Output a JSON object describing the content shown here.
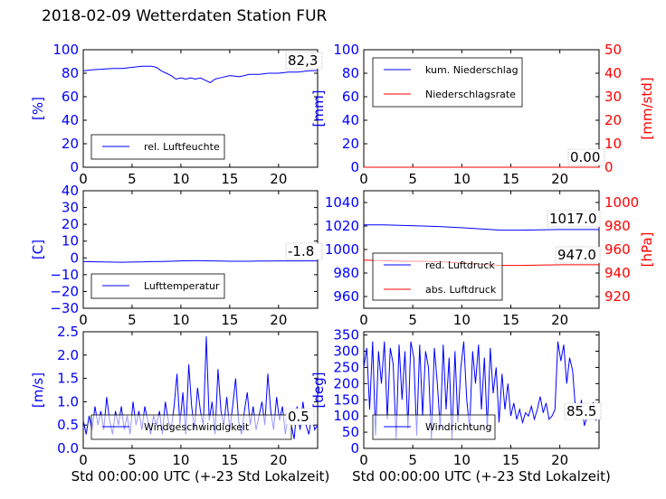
{
  "page_title": "2018-02-09 Wetterdaten Station FUR",
  "colors": {
    "left_axis": "#0000ff",
    "right_axis": "#ff0000",
    "frame": "#000000"
  },
  "chart_data": [
    {
      "type": "line",
      "ylabel": "[%]",
      "xlim": [
        0,
        24
      ],
      "ylim": [
        0,
        100
      ],
      "xticks": [
        0,
        5,
        10,
        15,
        20
      ],
      "yticks": [
        0,
        20,
        40,
        60,
        80,
        100
      ],
      "legend": [
        "rel. Luftfeuchte"
      ],
      "legend_position": "lower-left",
      "last_value_label": "82,3",
      "series": [
        {
          "name": "rel. Luftfeuchte",
          "color": "#0000ff",
          "x": [
            0,
            1,
            2,
            3,
            4,
            5,
            6,
            7,
            7.5,
            8,
            8.5,
            9,
            9.5,
            10,
            10.5,
            11,
            11.5,
            12,
            12.5,
            13,
            13.5,
            14,
            15,
            16,
            17,
            18,
            19,
            20,
            21,
            22,
            23,
            24
          ],
          "y": [
            82,
            83,
            83.5,
            84,
            84,
            85,
            86,
            86,
            85,
            82,
            80,
            78,
            75,
            76,
            75,
            76,
            75,
            76,
            74,
            72,
            75,
            76,
            78,
            77,
            79,
            79,
            80,
            80,
            81,
            81,
            82,
            82.3
          ]
        }
      ]
    },
    {
      "type": "line",
      "ylabel": "[mm]",
      "ylabel_right": "[mm/std]",
      "xlim": [
        0,
        24
      ],
      "ylim": [
        0,
        100
      ],
      "ylim_right": [
        0,
        50
      ],
      "xticks": [
        0,
        5,
        10,
        15,
        20
      ],
      "yticks": [
        0,
        20,
        40,
        60,
        80,
        100
      ],
      "yticks_right": [
        0,
        10,
        20,
        30,
        40,
        50
      ],
      "legend": [
        "kum. Niederschlag",
        "Niederschlagsrate"
      ],
      "legend_position": "upper-left",
      "last_value_label": "0.00",
      "series": [
        {
          "name": "kum. Niederschlag",
          "axis": "left",
          "color": "#0000ff",
          "x": [
            0,
            24
          ],
          "y": [
            0,
            0
          ]
        },
        {
          "name": "Niederschlagsrate",
          "axis": "right",
          "color": "#ff0000",
          "x": [
            0,
            24
          ],
          "y": [
            0,
            0
          ]
        }
      ]
    },
    {
      "type": "line",
      "ylabel": "[C]",
      "xlim": [
        0,
        24
      ],
      "ylim": [
        -30,
        40
      ],
      "xticks": [
        0,
        5,
        10,
        15,
        20
      ],
      "yticks": [
        -30,
        -20,
        -10,
        0,
        10,
        20,
        30,
        40
      ],
      "legend": [
        "Lufttemperatur"
      ],
      "legend_position": "lower-left",
      "last_value_label": "-1.8",
      "series": [
        {
          "name": "Lufttemperatur",
          "color": "#0000ff",
          "x": [
            0,
            2,
            4,
            5,
            6,
            7,
            8,
            9,
            10,
            11,
            12,
            13,
            14,
            15,
            16,
            17,
            18,
            19,
            20,
            21,
            22,
            23,
            24
          ],
          "y": [
            -2.2,
            -2.4,
            -2.6,
            -2.5,
            -2.4,
            -2.2,
            -2.1,
            -2.0,
            -1.8,
            -1.7,
            -1.7,
            -1.8,
            -1.9,
            -2.0,
            -2.0,
            -2.0,
            -1.9,
            -1.9,
            -1.8,
            -1.8,
            -1.8,
            -1.8,
            -1.8
          ]
        }
      ]
    },
    {
      "type": "line",
      "ylabel_right": "[hPa]",
      "xlim": [
        0,
        24
      ],
      "ylim": [
        950,
        1050
      ],
      "ylim_right": [
        910,
        1010
      ],
      "xticks": [
        0,
        5,
        10,
        15,
        20
      ],
      "yticks": [
        960,
        980,
        1000,
        1020,
        1040
      ],
      "yticks_right": [
        920,
        940,
        960,
        980,
        1000
      ],
      "legend": [
        "red. Luftdruck",
        "abs. Luftdruck"
      ],
      "legend_position": "lower-left",
      "value_labels": [
        "1017.0",
        "947.0"
      ],
      "series": [
        {
          "name": "red. Luftdruck",
          "axis": "left",
          "color": "#0000ff",
          "x": [
            0,
            2,
            4,
            6,
            8,
            10,
            12,
            14,
            16,
            18,
            20,
            22,
            24
          ],
          "y": [
            1021,
            1021,
            1020.5,
            1020,
            1019.5,
            1018.5,
            1017.5,
            1016.5,
            1016.5,
            1016.8,
            1017,
            1017,
            1017
          ]
        },
        {
          "name": "abs. Luftdruck",
          "axis": "right",
          "color": "#ff0000",
          "x": [
            0,
            2,
            4,
            6,
            8,
            10,
            12,
            14,
            16,
            18,
            20,
            22,
            24
          ],
          "y": [
            951,
            950.5,
            950,
            950,
            949.5,
            948.5,
            947.5,
            946.5,
            946.5,
            946.8,
            947,
            947,
            947
          ]
        }
      ]
    },
    {
      "type": "line",
      "ylabel": "[m/s]",
      "xlabel": "Std 00:00:00 UTC (+-23 Std Lokalzeit)",
      "xlim": [
        0,
        24
      ],
      "ylim": [
        0,
        2.5
      ],
      "xticks": [
        0,
        5,
        10,
        15,
        20
      ],
      "yticks": [
        0.0,
        0.5,
        1.0,
        1.5,
        2.0,
        2.5
      ],
      "legend": [
        "Windgeschwindigkeit"
      ],
      "legend_position": "lower-left",
      "last_value_label": "0.5",
      "series": [
        {
          "name": "Windgeschwindigkeit",
          "color": "#0000ff",
          "x": [
            0,
            0.3,
            0.6,
            0.9,
            1.2,
            1.5,
            1.8,
            2.1,
            2.4,
            2.7,
            3.0,
            3.3,
            3.6,
            3.9,
            4.2,
            4.5,
            4.8,
            5.1,
            5.4,
            5.7,
            6.0,
            6.3,
            6.6,
            6.9,
            7.2,
            7.5,
            7.8,
            8.1,
            8.4,
            8.7,
            9.0,
            9.3,
            9.6,
            9.9,
            10.2,
            10.5,
            10.8,
            11.1,
            11.4,
            11.7,
            12.0,
            12.3,
            12.6,
            12.9,
            13.2,
            13.5,
            13.8,
            14.1,
            14.4,
            14.7,
            15.0,
            15.3,
            15.6,
            15.9,
            16.2,
            16.5,
            16.8,
            17.1,
            17.4,
            17.7,
            18.0,
            18.3,
            18.6,
            18.9,
            19.2,
            19.5,
            19.8,
            20.1,
            20.4,
            20.7,
            21.0,
            21.3,
            21.6,
            21.9,
            22.2,
            22.5,
            22.8,
            23.1,
            23.4,
            23.7,
            24.0
          ],
          "y": [
            0.6,
            0.3,
            0.7,
            0.4,
            0.9,
            0.5,
            0.8,
            0.4,
            1.1,
            0.6,
            0.3,
            0.8,
            0.5,
            0.9,
            0.4,
            0.7,
            0.3,
            1.0,
            0.5,
            0.8,
            0.4,
            0.9,
            0.6,
            0.3,
            0.7,
            0.5,
            0.8,
            0.3,
            1.0,
            0.6,
            0.4,
            0.9,
            1.6,
            0.5,
            1.2,
            0.3,
            1.8,
            0.9,
            0.4,
            1.3,
            0.8,
            0.5,
            2.4,
            0.6,
            1.0,
            0.3,
            1.7,
            0.8,
            0.5,
            1.1,
            0.4,
            0.9,
            1.5,
            0.6,
            0.3,
            0.8,
            1.2,
            0.5,
            0.9,
            0.4,
            0.7,
            1.0,
            0.5,
            1.6,
            0.8,
            0.4,
            1.1,
            0.6,
            0.9,
            0.3,
            0.8,
            0.5,
            0.2,
            0.9,
            0.4,
            1.0,
            0.5,
            0.3,
            0.7,
            0.4,
            0.5
          ]
        }
      ]
    },
    {
      "type": "line",
      "ylabel": "[deg]",
      "xlabel": "Std 00:00:00 UTC (+-23 Std Lokalzeit)",
      "xlim": [
        0,
        24
      ],
      "ylim": [
        0,
        360
      ],
      "xticks": [
        0,
        5,
        10,
        15,
        20
      ],
      "yticks": [
        0,
        50,
        100,
        150,
        200,
        250,
        300,
        350
      ],
      "legend": [
        "Windrichtung"
      ],
      "legend_position": "lower-left",
      "last_value_label": "85.5",
      "series": [
        {
          "name": "Windrichtung",
          "color": "#0000ff",
          "x": [
            0,
            0.3,
            0.6,
            0.9,
            1.2,
            1.5,
            1.8,
            2.1,
            2.4,
            2.7,
            3.0,
            3.3,
            3.6,
            3.9,
            4.2,
            4.5,
            4.8,
            5.1,
            5.4,
            5.7,
            6.0,
            6.3,
            6.6,
            6.9,
            7.2,
            7.5,
            7.8,
            8.1,
            8.4,
            8.7,
            9.0,
            9.3,
            9.6,
            9.9,
            10.2,
            10.5,
            10.8,
            11.1,
            11.4,
            11.7,
            12.0,
            12.3,
            12.6,
            12.9,
            13.2,
            13.5,
            13.8,
            14.1,
            14.4,
            14.7,
            15.0,
            15.3,
            15.6,
            15.9,
            16.2,
            16.5,
            16.8,
            17.1,
            17.4,
            17.7,
            18.0,
            18.3,
            18.6,
            18.9,
            19.2,
            19.5,
            19.8,
            20.1,
            20.4,
            20.7,
            21.0,
            21.3,
            21.6,
            21.9,
            22.2,
            22.5,
            22.8,
            23.1,
            23.4,
            23.7
          ],
          "y": [
            250,
            310,
            120,
            330,
            40,
            300,
            200,
            330,
            90,
            310,
            260,
            30,
            320,
            150,
            300,
            60,
            330,
            280,
            40,
            320,
            100,
            300,
            250,
            30,
            310,
            200,
            60,
            320,
            120,
            280,
            30,
            300,
            80,
            250,
            330,
            150,
            60,
            300,
            200,
            320,
            120,
            280,
            60,
            310,
            170,
            250,
            80,
            230,
            120,
            200,
            100,
            140,
            90,
            120,
            80,
            110,
            100,
            130,
            90,
            120,
            160,
            110,
            140,
            90,
            100,
            120,
            330,
            270,
            320,
            200,
            280,
            240,
            120,
            90,
            150,
            70,
            100,
            120,
            140,
            85.5
          ]
        }
      ]
    }
  ]
}
